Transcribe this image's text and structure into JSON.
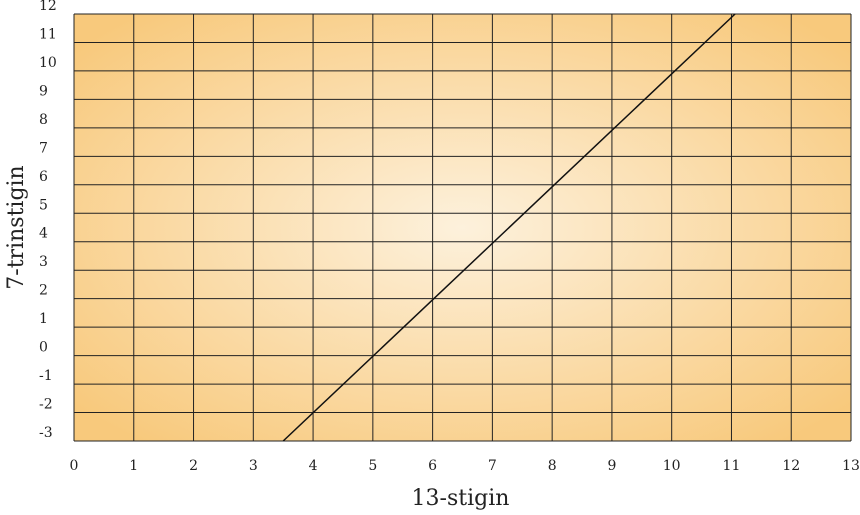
{
  "chart_data": {
    "type": "line",
    "xlabel": "13-stigin",
    "ylabel": "7-trinstigin",
    "xlim": [
      0,
      13
    ],
    "ylim": [
      -3,
      12
    ],
    "x_ticks": [
      "0",
      "1",
      "2",
      "3",
      "4",
      "5",
      "6",
      "7",
      "8",
      "9",
      "10",
      "11",
      "12",
      "13"
    ],
    "y_ticks": [
      "-3",
      "-2",
      "-1",
      "0",
      "1",
      "2",
      "3",
      "4",
      "5",
      "6",
      "7",
      "8",
      "9",
      "10",
      "11",
      "12"
    ],
    "grid": true,
    "series": [
      {
        "x": [
          3.5,
          11.06
        ],
        "y": [
          -3,
          12
        ]
      }
    ],
    "colors": {
      "background_center": "#fdf1dc",
      "background_edge": "#f8c97c",
      "grid": "#222222",
      "line": "#111111"
    }
  }
}
